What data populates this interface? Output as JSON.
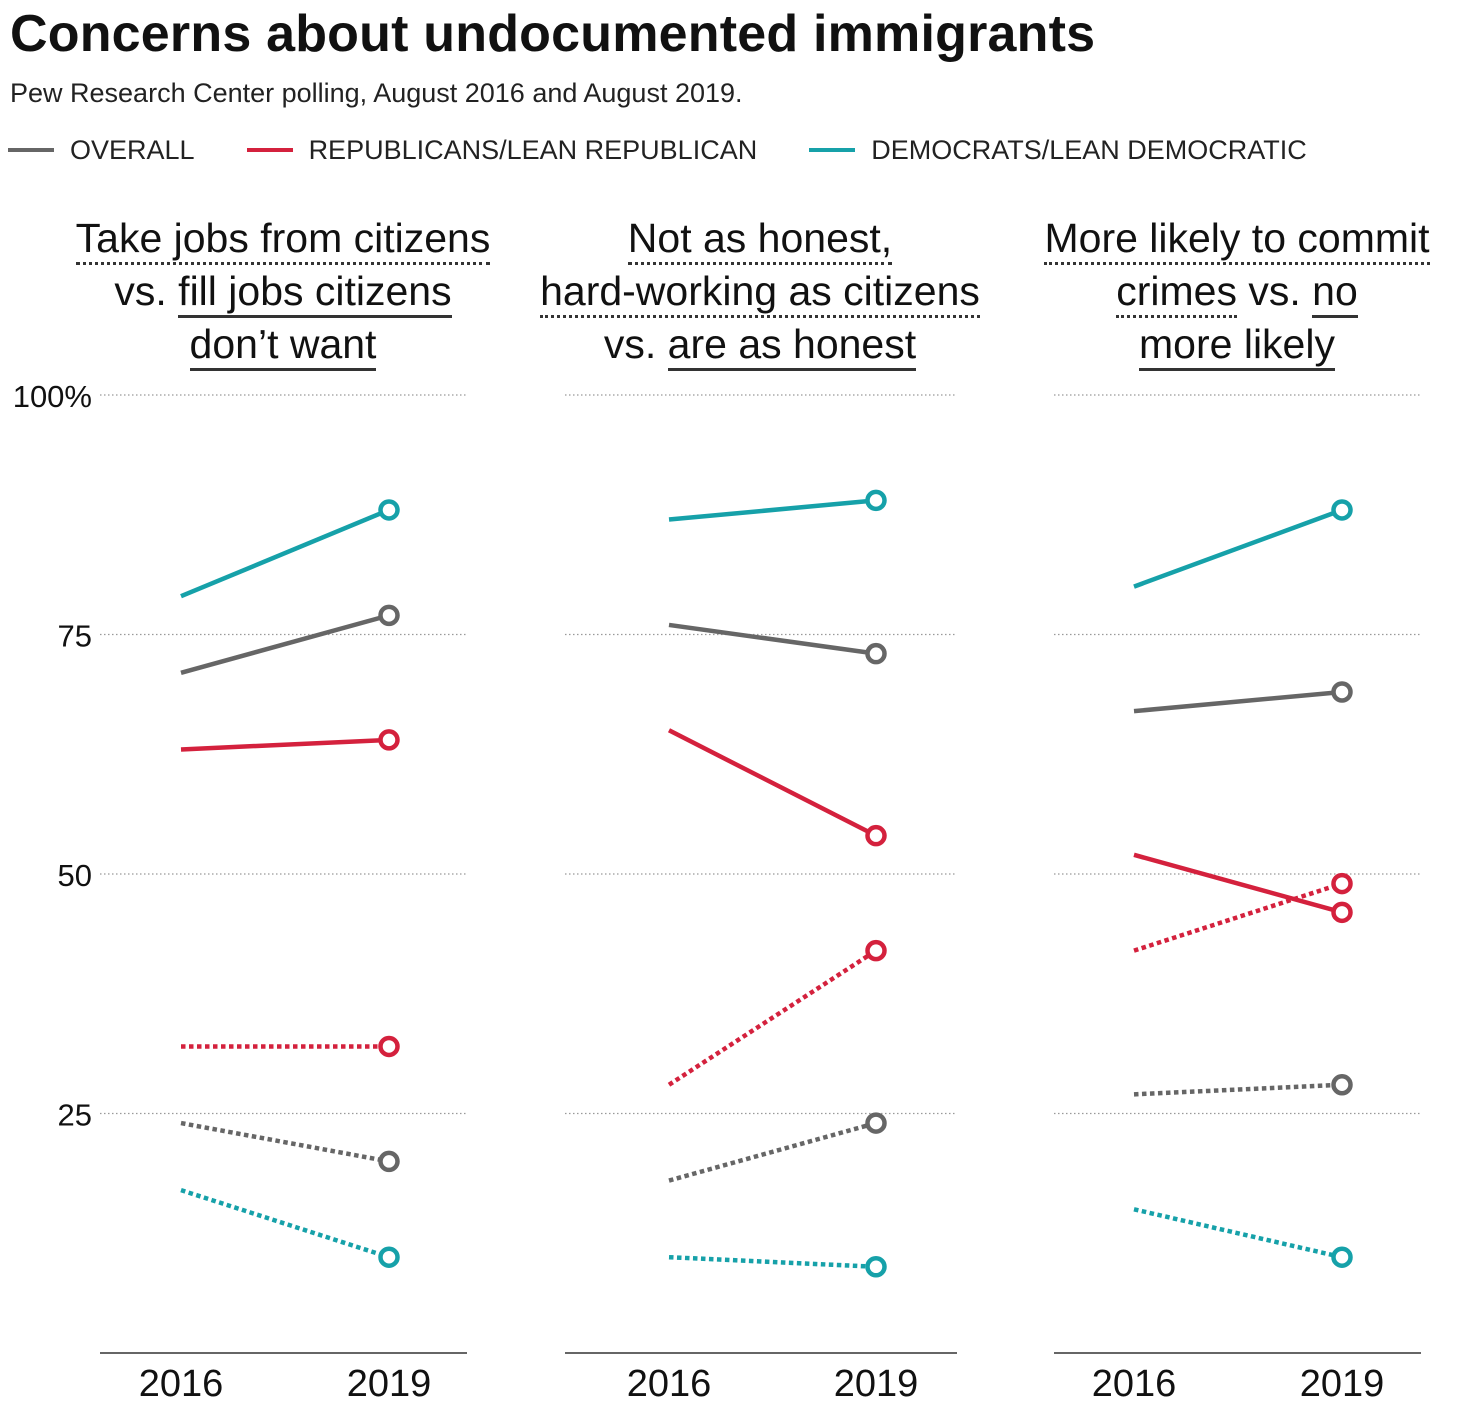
{
  "title": "Concerns about undocumented immigrants",
  "subtitle": "Pew Research Center polling, August 2016 and August 2019.",
  "legend": [
    {
      "label": "OVERALL",
      "color": "#666666"
    },
    {
      "label": "REPUBLICANS/LEAN REPUBLICAN",
      "color": "#d4213d"
    },
    {
      "label": "DEMOCRATS/LEAN DEMOCRATIC",
      "color": "#16a1a9"
    }
  ],
  "colors": {
    "overall": "#666666",
    "republican": "#d4213d",
    "democrat": "#16a1a9",
    "grid": "#999999",
    "axis": "#333333"
  },
  "panels": [
    {
      "title_lines": [
        [
          {
            "text": "Take jobs from citizens",
            "style": "dotted"
          }
        ],
        [
          {
            "text": "vs. ",
            "style": "none"
          },
          {
            "text": "fill jobs citizens",
            "style": "solid"
          }
        ],
        [
          {
            "text": "don’t want",
            "style": "solid"
          }
        ]
      ]
    },
    {
      "title_lines": [
        [
          {
            "text": "Not as honest,",
            "style": "dotted"
          }
        ],
        [
          {
            "text": "hard-working as citizens",
            "style": "dotted"
          }
        ],
        [
          {
            "text": "vs. ",
            "style": "none"
          },
          {
            "text": "are as honest",
            "style": "solid"
          }
        ]
      ]
    },
    {
      "title_lines": [
        [
          {
            "text": "More likely to commit",
            "style": "dotted"
          }
        ],
        [
          {
            "text": "crimes",
            "style": "dotted"
          },
          {
            "text": " vs. ",
            "style": "none"
          },
          {
            "text": "no",
            "style": "solid"
          }
        ],
        [
          {
            "text": "more likely",
            "style": "solid"
          }
        ]
      ]
    }
  ],
  "chart_data": [
    {
      "type": "line",
      "title": "Take jobs from citizens vs. fill jobs citizens don’t want",
      "categories": [
        "2016",
        "2019"
      ],
      "ylim": [
        0,
        100
      ],
      "yticks": [
        {
          "value": 100,
          "label": "100%"
        },
        {
          "value": 75,
          "label": "75"
        },
        {
          "value": 50,
          "label": "50"
        },
        {
          "value": 25,
          "label": "25"
        }
      ],
      "series": [
        {
          "name": "Democrats fill jobs",
          "group": "democrat",
          "style": "solid",
          "values": [
            79,
            88
          ]
        },
        {
          "name": "Overall fill jobs",
          "group": "overall",
          "style": "solid",
          "values": [
            71,
            77
          ]
        },
        {
          "name": "Republicans fill jobs",
          "group": "republican",
          "style": "solid",
          "values": [
            63,
            64
          ]
        },
        {
          "name": "Republicans take jobs",
          "group": "republican",
          "style": "dotted",
          "values": [
            32,
            32
          ]
        },
        {
          "name": "Overall take jobs",
          "group": "overall",
          "style": "dotted",
          "values": [
            24,
            20
          ]
        },
        {
          "name": "Democrats take jobs",
          "group": "democrat",
          "style": "dotted",
          "values": [
            17,
            10
          ]
        }
      ]
    },
    {
      "type": "line",
      "title": "Not as honest, hard-working as citizens vs. are as honest",
      "categories": [
        "2016",
        "2019"
      ],
      "ylim": [
        0,
        100
      ],
      "yticks": [
        {
          "value": 100,
          "label": ""
        },
        {
          "value": 75,
          "label": ""
        },
        {
          "value": 50,
          "label": ""
        },
        {
          "value": 25,
          "label": ""
        }
      ],
      "series": [
        {
          "name": "Democrats as honest",
          "group": "democrat",
          "style": "solid",
          "values": [
            87,
            89
          ]
        },
        {
          "name": "Overall as honest",
          "group": "overall",
          "style": "solid",
          "values": [
            76,
            73
          ]
        },
        {
          "name": "Republicans as honest",
          "group": "republican",
          "style": "solid",
          "values": [
            65,
            54
          ]
        },
        {
          "name": "Republicans not as honest",
          "group": "republican",
          "style": "dotted",
          "values": [
            28,
            42
          ]
        },
        {
          "name": "Overall not as honest",
          "group": "overall",
          "style": "dotted",
          "values": [
            18,
            24
          ]
        },
        {
          "name": "Democrats not as honest",
          "group": "democrat",
          "style": "dotted",
          "values": [
            10,
            9
          ]
        }
      ]
    },
    {
      "type": "line",
      "title": "More likely to commit crimes vs. no more likely",
      "categories": [
        "2016",
        "2019"
      ],
      "ylim": [
        0,
        100
      ],
      "yticks": [
        {
          "value": 100,
          "label": ""
        },
        {
          "value": 75,
          "label": ""
        },
        {
          "value": 50,
          "label": ""
        },
        {
          "value": 25,
          "label": ""
        }
      ],
      "series": [
        {
          "name": "Democrats no more likely",
          "group": "democrat",
          "style": "solid",
          "values": [
            80,
            88
          ]
        },
        {
          "name": "Overall no more likely",
          "group": "overall",
          "style": "solid",
          "values": [
            67,
            69
          ]
        },
        {
          "name": "Republicans no more likely",
          "group": "republican",
          "style": "solid",
          "values": [
            52,
            46
          ]
        },
        {
          "name": "Republicans more likely",
          "group": "republican",
          "style": "dotted",
          "values": [
            42,
            49
          ]
        },
        {
          "name": "Overall more likely",
          "group": "overall",
          "style": "dotted",
          "values": [
            27,
            28
          ]
        },
        {
          "name": "Democrats more likely",
          "group": "democrat",
          "style": "dotted",
          "values": [
            15,
            10
          ]
        }
      ]
    }
  ]
}
